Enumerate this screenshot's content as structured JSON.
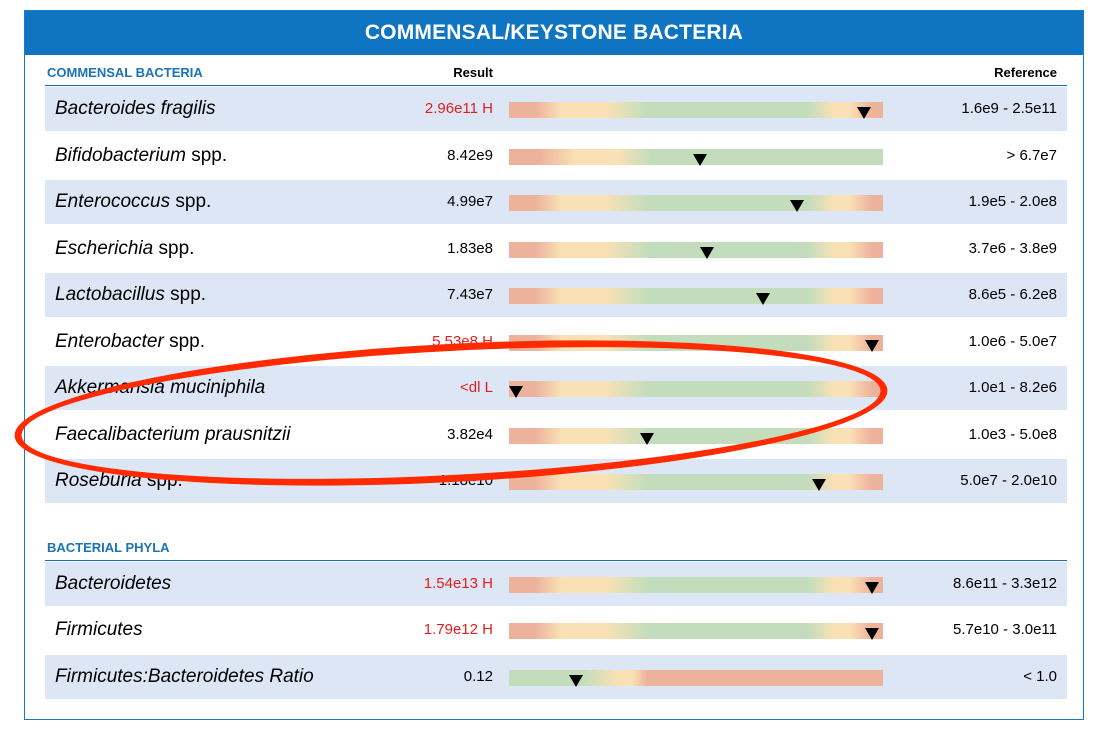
{
  "title": "COMMENSAL/KEYSTONE BACTERIA",
  "columns": {
    "result": "Result",
    "reference": "Reference"
  },
  "colors": {
    "title_bg": "#0f74c2",
    "section": "#1a73b8",
    "flag": "#e02020",
    "stripe": "#dde6f4",
    "low": "#edb29c",
    "border": "#f9e1b5",
    "normal": "#c3ddbc",
    "annotation": "#ff2a00"
  },
  "sections": [
    {
      "label": "COMMENSAL BACTERIA",
      "rows": [
        {
          "name": "Bacteroides fragilis",
          "suffix": "",
          "result": "2.96e11 H",
          "flag": true,
          "reference": "1.6e9 - 2.5e11",
          "bar": "range",
          "marker": 0.95
        },
        {
          "name": "Bifidobacterium",
          "suffix": " spp.",
          "result": "8.42e9",
          "flag": false,
          "reference": "> 6.7e7",
          "bar": "greater",
          "marker": 0.51
        },
        {
          "name": "Enterococcus",
          "suffix": " spp.",
          "result": "4.99e7",
          "flag": false,
          "reference": "1.9e5 - 2.0e8",
          "bar": "range",
          "marker": 0.77
        },
        {
          "name": "Escherichia",
          "suffix": " spp.",
          "result": "1.83e8",
          "flag": false,
          "reference": "3.7e6 - 3.8e9",
          "bar": "range",
          "marker": 0.53
        },
        {
          "name": "Lactobacillus",
          "suffix": " spp.",
          "result": "7.43e7",
          "flag": false,
          "reference": "8.6e5 - 6.2e8",
          "bar": "range",
          "marker": 0.68
        },
        {
          "name": "Enterobacter",
          "suffix": " spp.",
          "result": "5.53e8 H",
          "flag": true,
          "reference": "1.0e6 - 5.0e7",
          "bar": "range",
          "marker": 0.97
        },
        {
          "name": "Akkermansia muciniphila",
          "suffix": "",
          "result": "<dl L",
          "flag": true,
          "reference": "1.0e1 - 8.2e6",
          "bar": "range",
          "marker": 0.02
        },
        {
          "name": "Faecalibacterium prausnitzii",
          "suffix": "",
          "result": "3.82e4",
          "flag": false,
          "reference": "1.0e3 - 5.0e8",
          "bar": "range",
          "marker": 0.37
        },
        {
          "name": "Roseburia",
          "suffix": " spp.",
          "result": "1.18e10",
          "flag": false,
          "reference": "5.0e7 - 2.0e10",
          "bar": "range",
          "marker": 0.83
        }
      ]
    },
    {
      "label": "BACTERIAL PHYLA",
      "rows": [
        {
          "name": "Bacteroidetes",
          "suffix": "",
          "result": "1.54e13 H",
          "flag": true,
          "reference": "8.6e11 - 3.3e12",
          "bar": "range",
          "marker": 0.97
        },
        {
          "name": "Firmicutes",
          "suffix": "",
          "result": "1.79e12 H",
          "flag": true,
          "reference": "5.7e10 - 3.0e11",
          "bar": "range",
          "marker": 0.97
        },
        {
          "name": "Firmicutes:Bacteroidetes Ratio",
          "suffix": "",
          "result": "0.12",
          "flag": false,
          "reference": "< 1.0",
          "bar": "less",
          "marker": 0.18
        }
      ]
    }
  ]
}
